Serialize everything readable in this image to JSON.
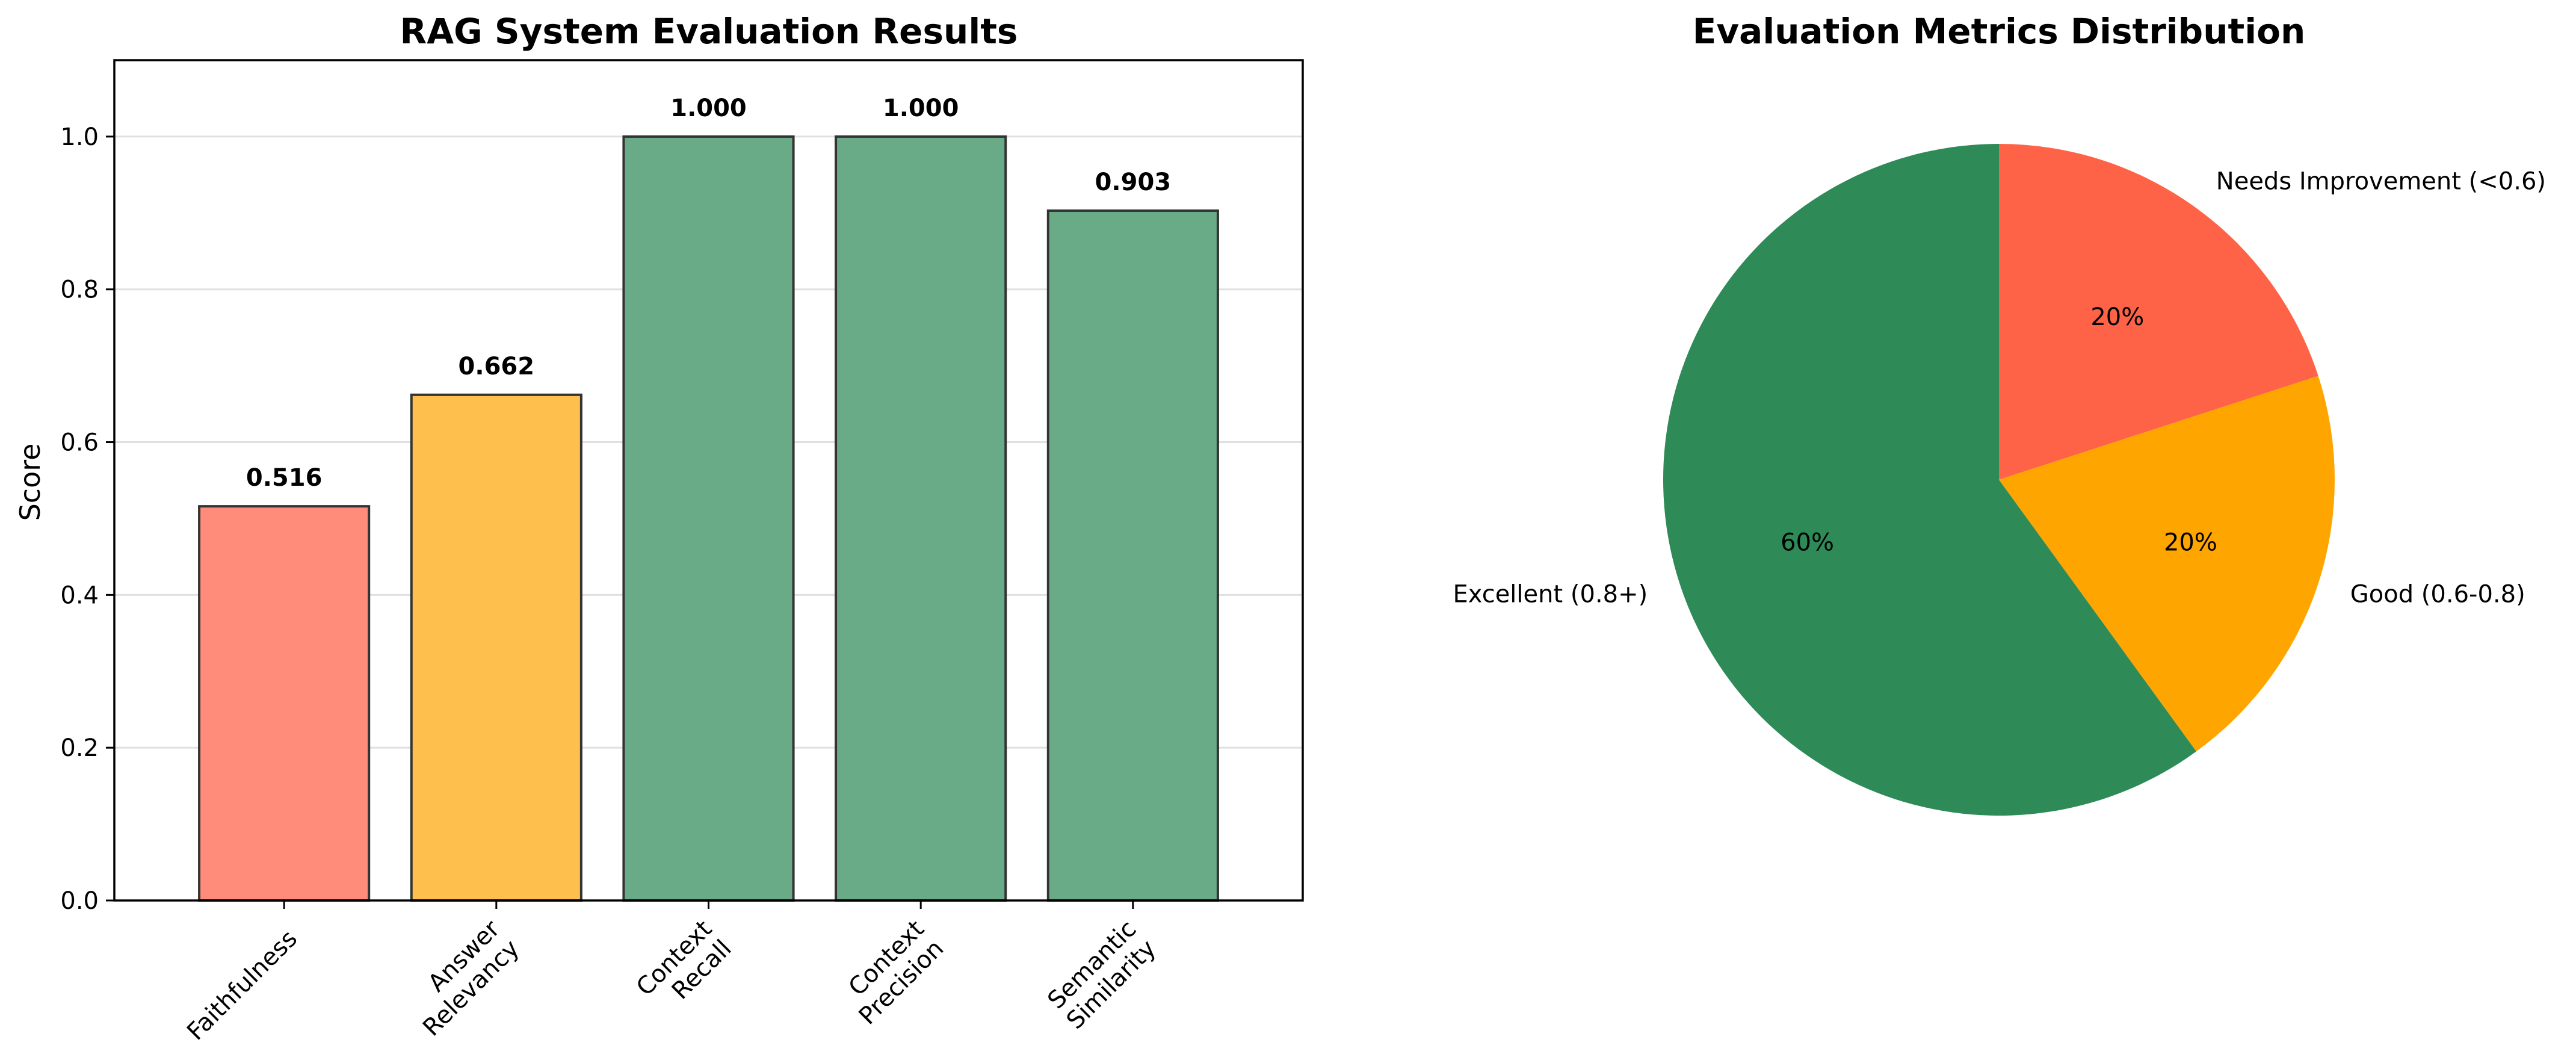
{
  "chart_data": [
    {
      "type": "bar",
      "title": "RAG System Evaluation Results",
      "xlabel": "",
      "ylabel": "Score",
      "ylim": [
        0,
        1.1
      ],
      "yticks": [
        "0.0",
        "0.2",
        "0.4",
        "0.6",
        "0.8",
        "1.0"
      ],
      "grid": "y",
      "categories": [
        [
          "Faithfulness"
        ],
        [
          "Answer",
          "Relevancy"
        ],
        [
          "Context",
          "Recall"
        ],
        [
          "Context",
          "Precision"
        ],
        [
          "Semantic",
          "Similarity"
        ]
      ],
      "values": [
        0.516,
        0.662,
        1.0,
        1.0,
        0.903
      ],
      "value_labels": [
        "0.516",
        "0.662",
        "1.000",
        "1.000",
        "0.903"
      ],
      "colors": [
        "#ff8c7a",
        "#ffbf4d",
        "#6aab87",
        "#6aab87",
        "#6aab87"
      ],
      "edge_color": "#333333"
    },
    {
      "type": "pie",
      "title": "Evaluation Metrics Distribution",
      "slices": [
        {
          "label": "Needs Improvement (<0.6)",
          "value": 20,
          "pct": "20%",
          "color": "#ff6347"
        },
        {
          "label": "Good (0.6-0.8)",
          "value": 20,
          "pct": "20%",
          "color": "#ffa500"
        },
        {
          "label": "Excellent (0.8+)",
          "value": 60,
          "pct": "60%",
          "color": "#2e8b57"
        }
      ],
      "start_angle_deg": 90,
      "direction": "clockwise"
    }
  ]
}
